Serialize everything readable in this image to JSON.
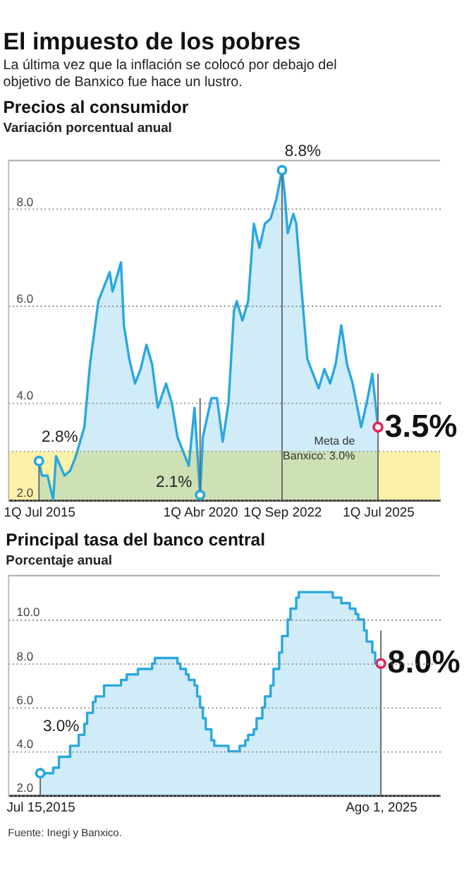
{
  "chart_data": [
    {
      "type": "area",
      "title": "Precios al consumidor",
      "subtitle": "Variación porcentual anual",
      "annotations": [
        "El impuesto de los pobres",
        "La última vez que la inflación se colocó por debajo del objetivo de Banxico fue hace un lustro.",
        {
          "text": "2.8%",
          "x": "2015-07",
          "y": 2.8
        },
        {
          "text": "2.1%",
          "x": "2020-04",
          "y": 2.1
        },
        {
          "text": "8.8%",
          "x": "2022-09",
          "y": 8.8
        },
        {
          "text": "3.5%",
          "x": "2025-07",
          "y": 3.5
        }
      ],
      "x": [
        "2015-07",
        "2015-08",
        "2015-10",
        "2015-12",
        "2016-01",
        "2016-04",
        "2016-06",
        "2016-08",
        "2016-09",
        "2016-11",
        "2017-01",
        "2017-04",
        "2017-06",
        "2017-08",
        "2017-09",
        "2017-11",
        "2017-12",
        "2018-01",
        "2018-03",
        "2018-05",
        "2018-07",
        "2018-09",
        "2018-11",
        "2019-01",
        "2019-04",
        "2019-06",
        "2019-08",
        "2019-10",
        "2019-12",
        "2020-02",
        "2020-04",
        "2020-05",
        "2020-08",
        "2020-10",
        "2020-12",
        "2021-02",
        "2021-04",
        "2021-05",
        "2021-06",
        "2021-07",
        "2021-09",
        "2021-11",
        "2022-01",
        "2022-03",
        "2022-05",
        "2022-07",
        "2022-09",
        "2022-10",
        "2022-11",
        "2023-01",
        "2023-02",
        "2023-04",
        "2023-06",
        "2023-10",
        "2023-12",
        "2024-02",
        "2024-04",
        "2024-06",
        "2024-08",
        "2024-10",
        "2025-01",
        "2025-03",
        "2025-05",
        "2025-07"
      ],
      "series": [
        {
          "color": "#2aa7df",
          "values": [
            2.8,
            2.5,
            2.5,
            2.0,
            2.9,
            2.5,
            2.6,
            2.9,
            3.1,
            3.5,
            4.8,
            6.1,
            6.4,
            6.7,
            6.3,
            6.7,
            6.9,
            5.6,
            4.9,
            4.4,
            4.7,
            5.2,
            4.8,
            3.9,
            4.4,
            4.0,
            3.3,
            3.0,
            2.7,
            3.9,
            2.1,
            3.3,
            4.1,
            4.1,
            3.2,
            4.0,
            5.9,
            6.1,
            5.9,
            5.7,
            6.1,
            7.7,
            7.2,
            7.7,
            7.8,
            8.2,
            8.8,
            8.3,
            7.5,
            7.9,
            7.7,
            6.3,
            4.9,
            4.3,
            4.7,
            4.4,
            4.8,
            5.6,
            4.8,
            4.4,
            3.5,
            4.0,
            4.6,
            3.5
          ]
        }
      ],
      "xlim": [
        "2014-08",
        "2027-05"
      ],
      "xticks": [
        {
          "value": "2015-07",
          "label": "1Q Jul 2015"
        },
        {
          "value": "2020-04",
          "label": "1Q Abr 2020"
        },
        {
          "value": "2022-09",
          "label": "1Q Sep 2022"
        },
        {
          "value": "2025-07",
          "label": "1Q Jul 2025"
        }
      ],
      "ylim": [
        2,
        9
      ],
      "yticks": [
        {
          "value": 2,
          "label": "2.0"
        },
        {
          "value": 4,
          "label": "4.0"
        },
        {
          "value": 6,
          "label": "6.0"
        },
        {
          "value": 8,
          "label": "8.0"
        }
      ],
      "grid": "y",
      "bands": [
        {
          "axis": "y",
          "from": 2,
          "to": 3,
          "color": "#fbf1a9"
        }
      ],
      "ref_lines": [
        {
          "axis": "y",
          "value": 3,
          "label": "Meta de Banxico: 3.0%",
          "color": "#9a9a9a",
          "line_style": "dotted"
        },
        {
          "axis": "x",
          "value": "2015-07",
          "color": "#666666"
        },
        {
          "axis": "x",
          "value": "2020-04",
          "color": "#666666"
        },
        {
          "axis": "x",
          "value": "2022-09",
          "color": "#666666"
        },
        {
          "axis": "x",
          "value": "2025-07",
          "color": "#666666"
        }
      ]
    },
    {
      "type": "area",
      "title": "Principal tasa del banco central",
      "subtitle": "Porcentaje anual",
      "annotations": [
        {
          "text": "3.0%",
          "x": "2015-07-15",
          "y": 3.0
        },
        {
          "text": "8.0%",
          "x": "2025-08-01",
          "y": 8.0
        },
        "Fuente: Inegi y Banxico."
      ],
      "x": [
        "2015-07-15",
        "2015-12",
        "2015-12",
        "2016-02",
        "2016-02",
        "2016-06",
        "2016-06",
        "2016-09",
        "2016-09",
        "2016-11",
        "2016-11",
        "2016-12",
        "2016-12",
        "2017-02",
        "2017-02",
        "2017-03",
        "2017-03",
        "2017-06",
        "2017-06",
        "2017-12",
        "2017-12",
        "2018-02",
        "2018-02",
        "2018-06",
        "2018-06",
        "2018-11",
        "2018-11",
        "2018-12",
        "2018-12",
        "2019-08",
        "2019-08",
        "2019-09",
        "2019-09",
        "2019-11",
        "2019-11",
        "2019-12",
        "2019-12",
        "2020-02",
        "2020-02",
        "2020-03",
        "2020-03",
        "2020-04",
        "2020-04",
        "2020-05",
        "2020-05",
        "2020-06",
        "2020-06",
        "2020-08",
        "2020-08",
        "2020-09",
        "2020-09",
        "2021-02",
        "2021-02",
        "2021-06",
        "2021-06",
        "2021-08",
        "2021-08",
        "2021-09",
        "2021-09",
        "2021-11",
        "2021-11",
        "2021-12",
        "2021-12",
        "2022-02",
        "2022-02",
        "2022-03",
        "2022-03",
        "2022-05",
        "2022-05",
        "2022-06",
        "2022-06",
        "2022-08",
        "2022-08",
        "2022-09",
        "2022-09",
        "2022-11",
        "2022-11",
        "2022-12",
        "2022-12",
        "2023-02",
        "2023-02",
        "2023-03",
        "2023-03",
        "2024-03",
        "2024-03",
        "2024-06",
        "2024-06",
        "2024-09",
        "2024-09",
        "2024-11",
        "2024-11",
        "2024-12",
        "2024-12",
        "2025-02",
        "2025-02",
        "2025-03",
        "2025-03",
        "2025-05",
        "2025-05",
        "2025-06",
        "2025-06",
        "2025-08-01"
      ],
      "series": [
        {
          "color": "#2aa7df",
          "values": [
            3.0,
            3.0,
            3.25,
            3.25,
            3.75,
            3.75,
            4.25,
            4.25,
            4.75,
            4.75,
            5.25,
            5.25,
            5.75,
            5.75,
            6.25,
            6.25,
            6.5,
            6.5,
            7.0,
            7.0,
            7.25,
            7.25,
            7.5,
            7.5,
            7.75,
            7.75,
            8.0,
            8.0,
            8.25,
            8.25,
            8.0,
            8.0,
            7.75,
            7.75,
            7.5,
            7.5,
            7.25,
            7.25,
            7.0,
            7.0,
            6.5,
            6.5,
            6.0,
            6.0,
            5.5,
            5.5,
            5.0,
            5.0,
            4.5,
            4.5,
            4.25,
            4.25,
            4.0,
            4.0,
            4.25,
            4.25,
            4.5,
            4.5,
            4.75,
            4.75,
            5.0,
            5.0,
            5.5,
            5.5,
            6.0,
            6.0,
            6.5,
            6.5,
            7.0,
            7.0,
            7.75,
            7.75,
            8.5,
            8.5,
            9.25,
            9.25,
            10.0,
            10.0,
            10.5,
            10.5,
            11.0,
            11.0,
            11.25,
            11.25,
            11.0,
            11.0,
            10.75,
            10.75,
            10.5,
            10.5,
            10.25,
            10.25,
            10.0,
            10.0,
            9.5,
            9.5,
            9.0,
            9.0,
            8.5,
            8.5,
            8.0,
            8.0
          ]
        }
      ],
      "xlim": [
        "2014-08",
        "2027-05"
      ],
      "xticks": [
        {
          "value": "2015-07-15",
          "label": "Jul 15,2015"
        },
        {
          "value": "2025-08-01",
          "label": "Ago 1, 2025"
        }
      ],
      "ylim": [
        2,
        12
      ],
      "yticks": [
        {
          "value": 2,
          "label": "2.0"
        },
        {
          "value": 4,
          "label": "4.0"
        },
        {
          "value": 6,
          "label": "6.0"
        },
        {
          "value": 8,
          "label": "8.0"
        },
        {
          "value": 10,
          "label": "10.0"
        }
      ],
      "grid": "y",
      "ref_lines": [
        {
          "axis": "x",
          "value": "2015-07-15",
          "color": "#666666"
        },
        {
          "axis": "x",
          "value": "2025-08-01",
          "color": "#666666"
        }
      ]
    }
  ]
}
